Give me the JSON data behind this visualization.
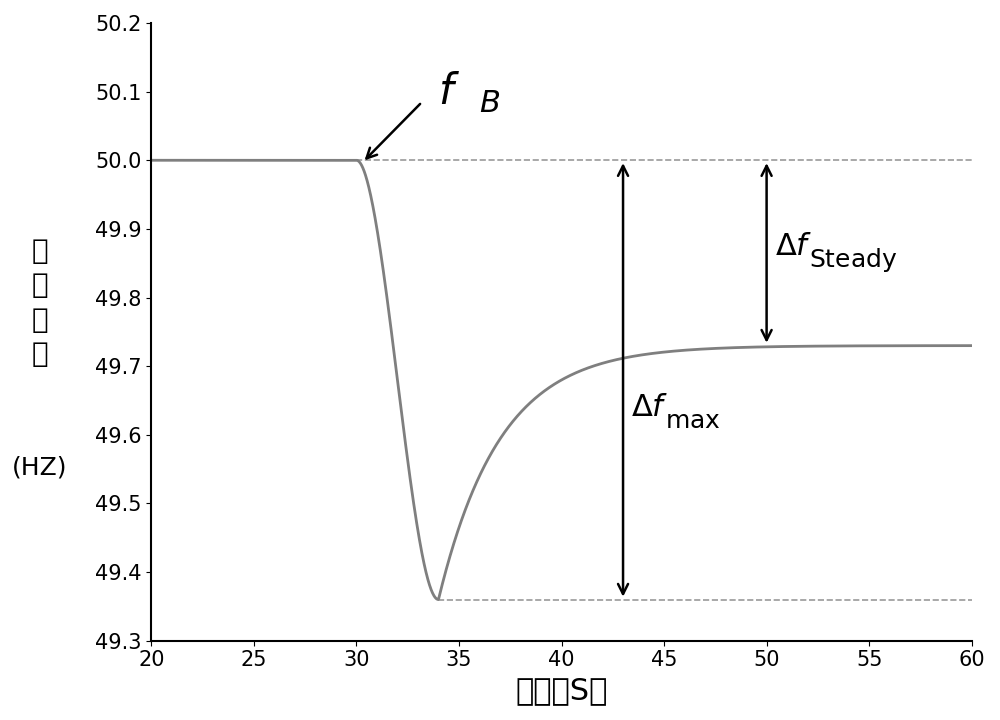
{
  "xlim": [
    20,
    60
  ],
  "ylim": [
    49.3,
    50.2
  ],
  "xticks": [
    20,
    25,
    30,
    35,
    40,
    45,
    50,
    55,
    60
  ],
  "yticks": [
    49.3,
    49.4,
    49.5,
    49.6,
    49.7,
    49.8,
    49.9,
    50.0,
    50.1,
    50.2
  ],
  "xlabel": "时间（S）",
  "line_color": "#7f7f7f",
  "line_width": 2.0,
  "background_color": "#ffffff",
  "f_nominal": 50.0,
  "f_min": 49.36,
  "f_steady": 49.73,
  "t_drop_start": 30.0,
  "t_min": 34.0,
  "t_arrow_max": 43.0,
  "t_arrow_steady": 50.0,
  "dashed_color": "#999999",
  "arrow_color": "#000000",
  "annotation_fontsize": 22,
  "axis_label_fontsize": 20,
  "tick_fontsize": 15,
  "ylabel_lines": [
    "电",
    "网",
    "频",
    "率",
    "",
    "(HZ)"
  ],
  "recovery_tau": 3.0
}
